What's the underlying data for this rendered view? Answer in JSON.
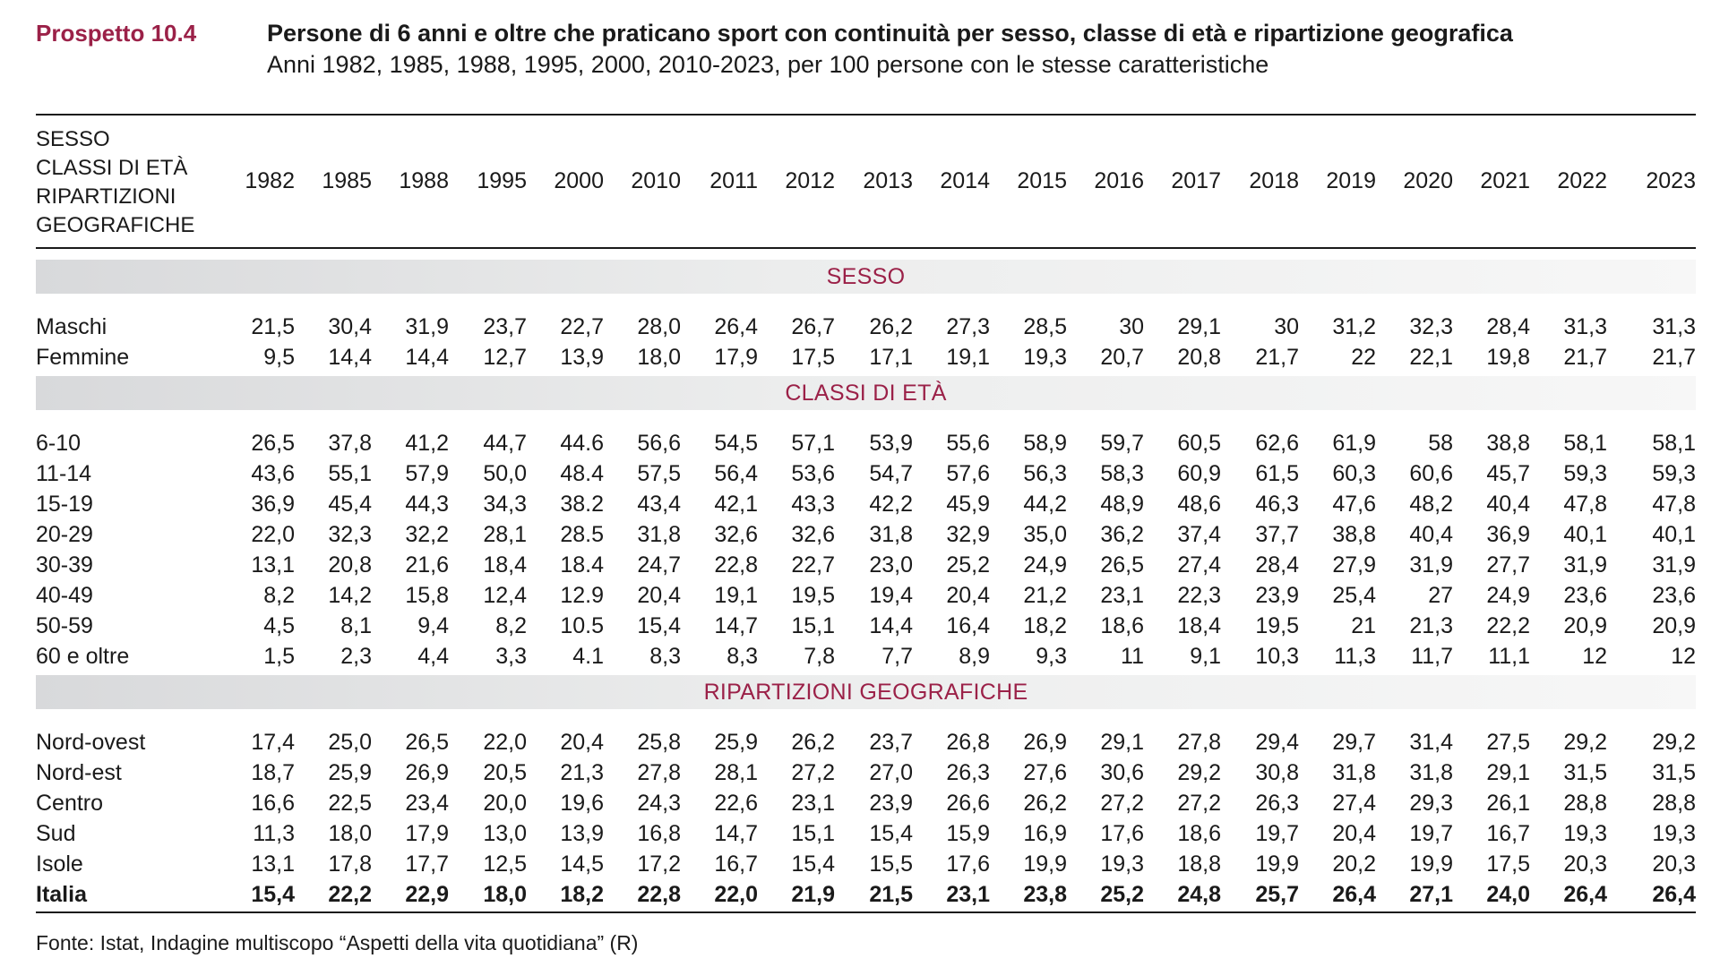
{
  "header": {
    "prospetto": "Prospetto 10.4",
    "title": "Persone di 6 anni e oltre che praticano sport con continuità per sesso, classe di età e ripartizione geografica",
    "subtitle": "Anni 1982, 1985, 1988, 1995, 2000, 2010-2023, per 100 persone con le stesse caratteristiche"
  },
  "table": {
    "stub_header": [
      "SESSO",
      "CLASSI DI ETÀ",
      "RIPARTIZIONI",
      "GEOGRAFICHE"
    ],
    "years": [
      "1982",
      "1985",
      "1988",
      "1995",
      "2000",
      "2010",
      "2011",
      "2012",
      "2013",
      "2014",
      "2015",
      "2016",
      "2017",
      "2018",
      "2019",
      "2020",
      "2021",
      "2022",
      "2023"
    ],
    "sections": [
      {
        "label": "SESSO",
        "rows": [
          {
            "label": "Maschi",
            "values": [
              "21,5",
              "30,4",
              "31,9",
              "23,7",
              "22,7",
              "28,0",
              "26,4",
              "26,7",
              "26,2",
              "27,3",
              "28,5",
              "30",
              "29,1",
              "30",
              "31,2",
              "32,3",
              "28,4",
              "31,3",
              "31,3"
            ]
          },
          {
            "label": "Femmine",
            "values": [
              "9,5",
              "14,4",
              "14,4",
              "12,7",
              "13,9",
              "18,0",
              "17,9",
              "17,5",
              "17,1",
              "19,1",
              "19,3",
              "20,7",
              "20,8",
              "21,7",
              "22",
              "22,1",
              "19,8",
              "21,7",
              "21,7"
            ]
          }
        ]
      },
      {
        "label": "CLASSI DI ETÀ",
        "rows": [
          {
            "label": "6-10",
            "values": [
              "26,5",
              "37,8",
              "41,2",
              "44,7",
              "44.6",
              "56,6",
              "54,5",
              "57,1",
              "53,9",
              "55,6",
              "58,9",
              "59,7",
              "60,5",
              "62,6",
              "61,9",
              "58",
              "38,8",
              "58,1",
              "58,1"
            ]
          },
          {
            "label": "11-14",
            "values": [
              "43,6",
              "55,1",
              "57,9",
              "50,0",
              "48.4",
              "57,5",
              "56,4",
              "53,6",
              "54,7",
              "57,6",
              "56,3",
              "58,3",
              "60,9",
              "61,5",
              "60,3",
              "60,6",
              "45,7",
              "59,3",
              "59,3"
            ]
          },
          {
            "label": "15-19",
            "values": [
              "36,9",
              "45,4",
              "44,3",
              "34,3",
              "38.2",
              "43,4",
              "42,1",
              "43,3",
              "42,2",
              "45,9",
              "44,2",
              "48,9",
              "48,6",
              "46,3",
              "47,6",
              "48,2",
              "40,4",
              "47,8",
              "47,8"
            ]
          },
          {
            "label": "20-29",
            "values": [
              "22,0",
              "32,3",
              "32,2",
              "28,1",
              "28.5",
              "31,8",
              "32,6",
              "32,6",
              "31,8",
              "32,9",
              "35,0",
              "36,2",
              "37,4",
              "37,7",
              "38,8",
              "40,4",
              "36,9",
              "40,1",
              "40,1"
            ]
          },
          {
            "label": "30-39",
            "values": [
              "13,1",
              "20,8",
              "21,6",
              "18,4",
              "18.4",
              "24,7",
              "22,8",
              "22,7",
              "23,0",
              "25,2",
              "24,9",
              "26,5",
              "27,4",
              "28,4",
              "27,9",
              "31,9",
              "27,7",
              "31,9",
              "31,9"
            ]
          },
          {
            "label": "40-49",
            "values": [
              "8,2",
              "14,2",
              "15,8",
              "12,4",
              "12.9",
              "20,4",
              "19,1",
              "19,5",
              "19,4",
              "20,4",
              "21,2",
              "23,1",
              "22,3",
              "23,9",
              "25,4",
              "27",
              "24,9",
              "23,6",
              "23,6"
            ]
          },
          {
            "label": "50-59",
            "values": [
              "4,5",
              "8,1",
              "9,4",
              "8,2",
              "10.5",
              "15,4",
              "14,7",
              "15,1",
              "14,4",
              "16,4",
              "18,2",
              "18,6",
              "18,4",
              "19,5",
              "21",
              "21,3",
              "22,2",
              "20,9",
              "20,9"
            ]
          },
          {
            "label": "60 e oltre",
            "values": [
              "1,5",
              "2,3",
              "4,4",
              "3,3",
              "4.1",
              "8,3",
              "8,3",
              "7,8",
              "7,7",
              "8,9",
              "9,3",
              "11",
              "9,1",
              "10,3",
              "11,3",
              "11,7",
              "11,1",
              "12",
              "12"
            ]
          }
        ]
      },
      {
        "label": "RIPARTIZIONI GEOGRAFICHE",
        "rows": [
          {
            "label": "Nord-ovest",
            "values": [
              "17,4",
              "25,0",
              "26,5",
              "22,0",
              "20,4",
              "25,8",
              "25,9",
              "26,2",
              "23,7",
              "26,8",
              "26,9",
              "29,1",
              "27,8",
              "29,4",
              "29,7",
              "31,4",
              "27,5",
              "29,2",
              "29,2"
            ]
          },
          {
            "label": "Nord-est",
            "values": [
              "18,7",
              "25,9",
              "26,9",
              "20,5",
              "21,3",
              "27,8",
              "28,1",
              "27,2",
              "27,0",
              "26,3",
              "27,6",
              "30,6",
              "29,2",
              "30,8",
              "31,8",
              "31,8",
              "29,1",
              "31,5",
              "31,5"
            ]
          },
          {
            "label": "Centro",
            "values": [
              "16,6",
              "22,5",
              "23,4",
              "20,0",
              "19,6",
              "24,3",
              "22,6",
              "23,1",
              "23,9",
              "26,6",
              "26,2",
              "27,2",
              "27,2",
              "26,3",
              "27,4",
              "29,3",
              "26,1",
              "28,8",
              "28,8"
            ]
          },
          {
            "label": "Sud",
            "values": [
              "11,3",
              "18,0",
              "17,9",
              "13,0",
              "13,9",
              "16,8",
              "14,7",
              "15,1",
              "15,4",
              "15,9",
              "16,9",
              "17,6",
              "18,6",
              "19,7",
              "20,4",
              "19,7",
              "16,7",
              "19,3",
              "19,3"
            ]
          },
          {
            "label": "Isole",
            "values": [
              "13,1",
              "17,8",
              "17,7",
              "12,5",
              "14,5",
              "17,2",
              "16,7",
              "15,4",
              "15,5",
              "17,6",
              "19,9",
              "19,3",
              "18,8",
              "19,9",
              "20,2",
              "19,9",
              "17,5",
              "20,3",
              "20,3"
            ]
          },
          {
            "label": "Italia",
            "values": [
              "15,4",
              "22,2",
              "22,9",
              "18,0",
              "18,2",
              "22,8",
              "22,0",
              "21,9",
              "21,5",
              "23,1",
              "23,8",
              "25,2",
              "24,8",
              "25,7",
              "26,4",
              "27,1",
              "24,0",
              "26,4",
              "26,4"
            ],
            "bold": true
          }
        ]
      }
    ]
  },
  "footer": {
    "source": "Fonte: Istat, Indagine multiscopo “Aspetti della vita quotidiana” (R)"
  },
  "colors": {
    "accent": "#9b2148",
    "band_light": "#f7f7f7",
    "band_dark": "#d8d9db",
    "text": "#1a1a1a"
  }
}
